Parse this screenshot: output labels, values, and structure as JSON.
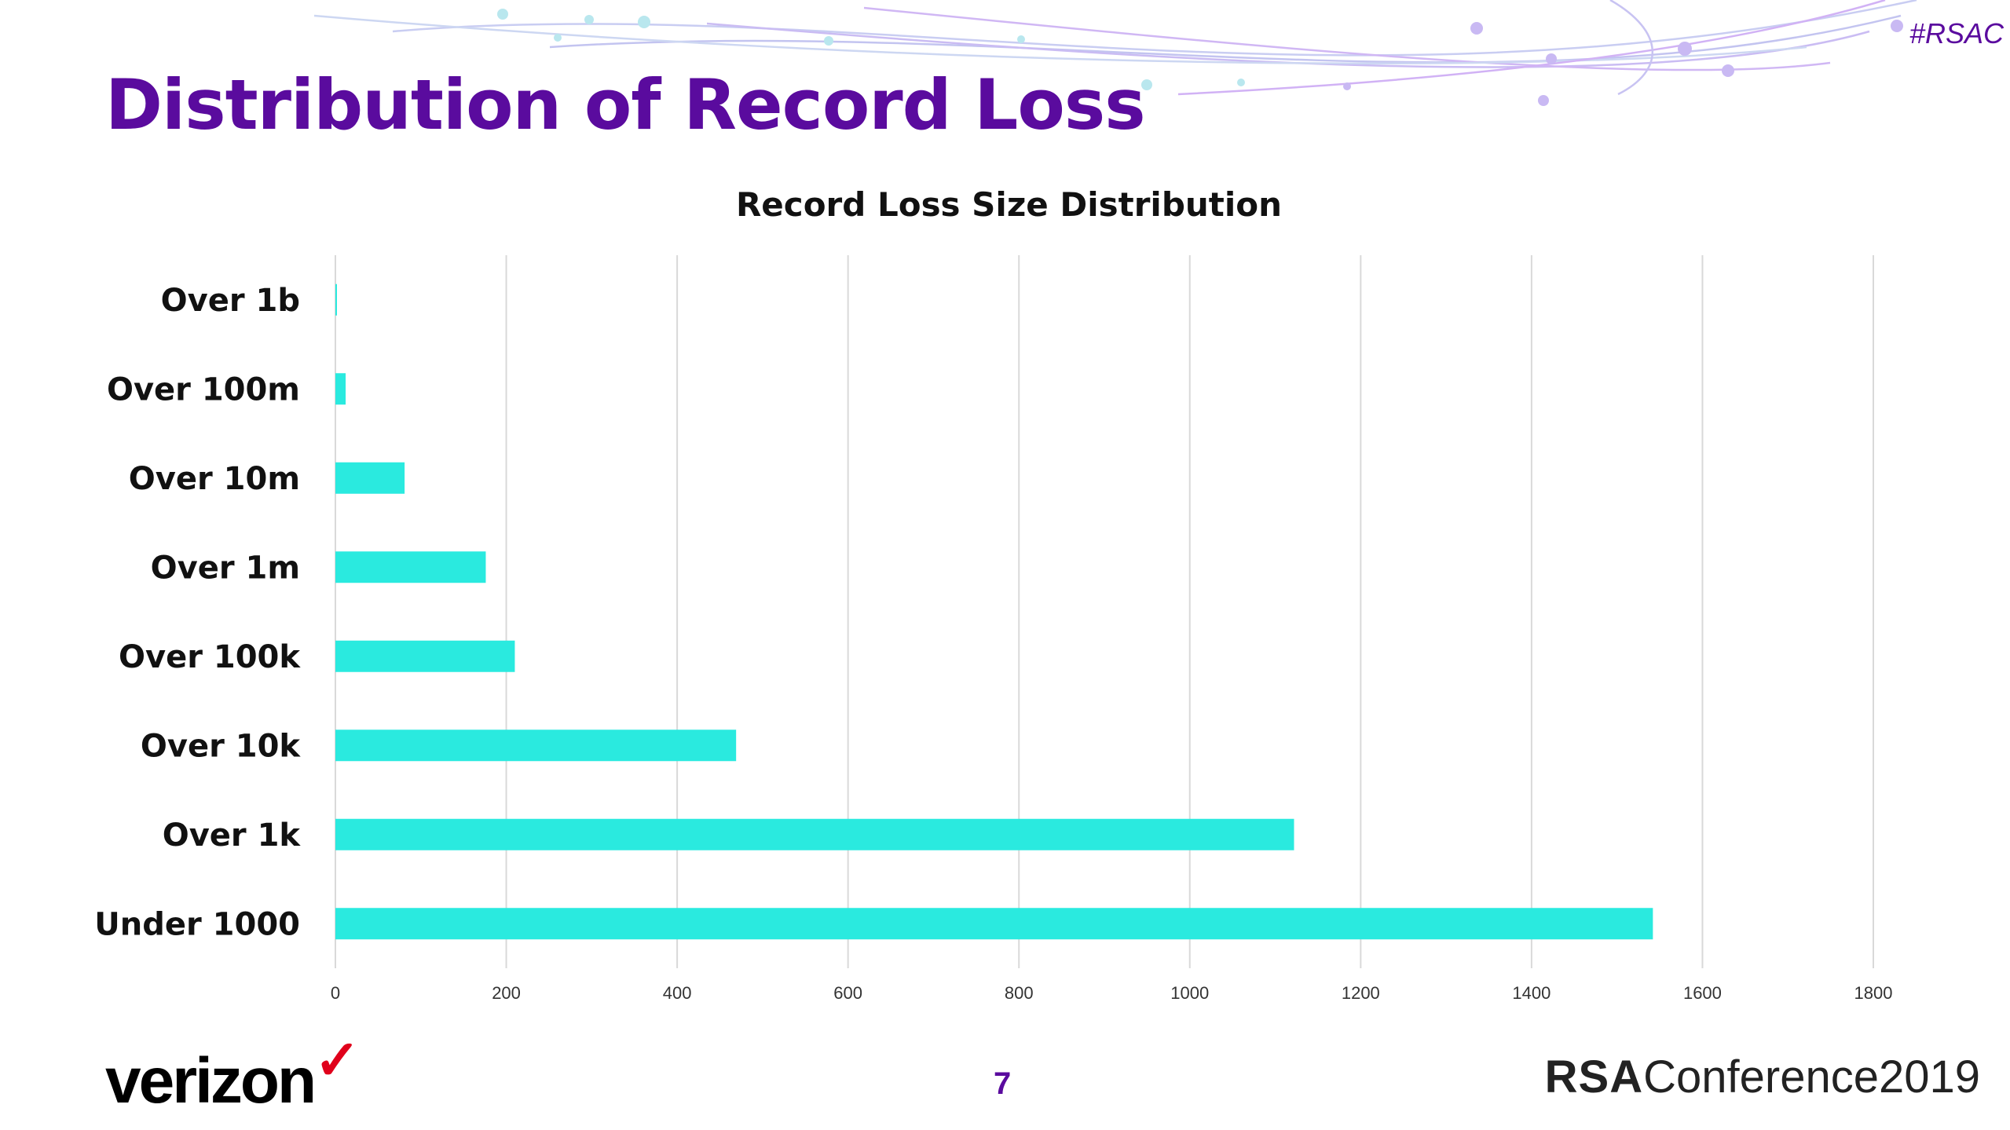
{
  "slide": {
    "title": "Distribution of Record Loss",
    "hashtag": "#RSAC",
    "page_number": "7",
    "footer_logo_left": "verizon",
    "footer_logo_right_bold": "RSA",
    "footer_logo_right": "Conference2019",
    "accent_color": "#5a0b9e"
  },
  "chart_data": {
    "type": "bar",
    "orientation": "horizontal",
    "title": "Record Loss Size Distribution",
    "categories": [
      "Over 1b",
      "Over 100m",
      "Over 10m",
      "Over 1m",
      "Over 100k",
      "Over 10k",
      "Over 1k",
      "Under 1000"
    ],
    "values": [
      1,
      12,
      81,
      176,
      210,
      469,
      1122,
      1542
    ],
    "xlim": [
      0,
      1800
    ],
    "xticks": [
      "0",
      "200",
      "400",
      "600",
      "800",
      "1000",
      "1200",
      "1400",
      "1600",
      "1800"
    ],
    "grid": true,
    "bar_color": "#2aeadf",
    "legend": "none"
  }
}
